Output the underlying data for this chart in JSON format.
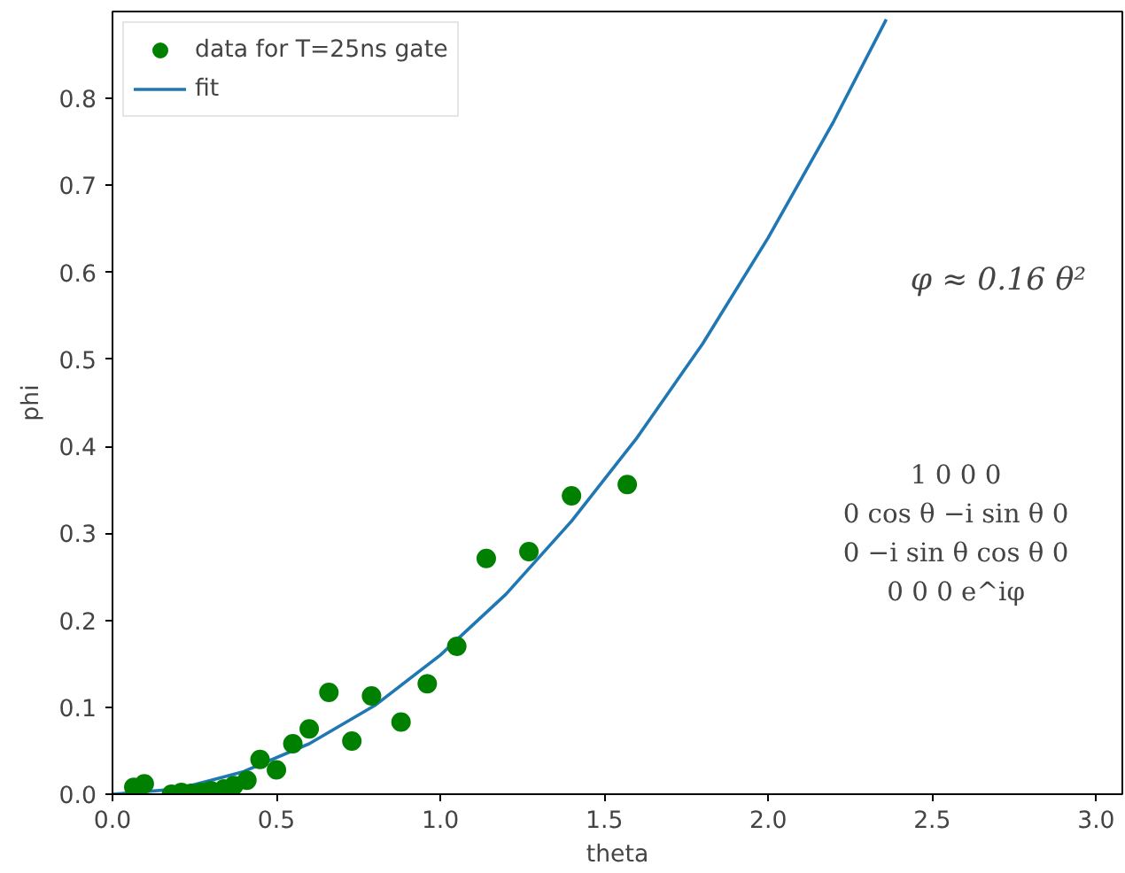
{
  "chart_data": {
    "type": "scatter",
    "xlabel": "theta",
    "ylabel": "phi",
    "xlim": [
      0,
      3.08
    ],
    "ylim": [
      0,
      0.9
    ],
    "xticks": [
      {
        "value": 0,
        "label": "0.0"
      },
      {
        "value": 0.5,
        "label": "0.5"
      },
      {
        "value": 1,
        "label": "1.0"
      },
      {
        "value": 1.5,
        "label": "1.5"
      },
      {
        "value": 2,
        "label": "2.0"
      },
      {
        "value": 2.5,
        "label": "2.5"
      },
      {
        "value": 3,
        "label": "3.0"
      }
    ],
    "yticks": [
      {
        "value": 0,
        "label": "0.0"
      },
      {
        "value": 0.1,
        "label": "0.1"
      },
      {
        "value": 0.2,
        "label": "0.2"
      },
      {
        "value": 0.3,
        "label": "0.3"
      },
      {
        "value": 0.4,
        "label": "0.4"
      },
      {
        "value": 0.5,
        "label": "0.5"
      },
      {
        "value": 0.6,
        "label": "0.6"
      },
      {
        "value": 0.7,
        "label": "0.7"
      },
      {
        "value": 0.8,
        "label": "0.8"
      }
    ],
    "grid": false,
    "legend": "top left",
    "series": [
      {
        "name": "data for T=25ns gate",
        "marker": "circle",
        "color": "#008000",
        "x": [
          0.065,
          0.097,
          0.18,
          0.21,
          0.24,
          0.27,
          0.3,
          0.34,
          0.37,
          0.41,
          0.45,
          0.5,
          0.55,
          0.6,
          0.66,
          0.73,
          0.79,
          0.88,
          0.96,
          1.05,
          1.14,
          1.27,
          1.4,
          1.57
        ],
        "values": [
          0.008,
          0.012,
          0.0,
          0.002,
          0.001,
          0.002,
          0.004,
          0.006,
          0.01,
          0.016,
          0.04,
          0.028,
          0.058,
          0.075,
          0.117,
          0.061,
          0.113,
          0.083,
          0.127,
          0.17,
          0.271,
          0.279,
          0.343,
          0.356
        ]
      },
      {
        "name": "fit",
        "type": "line",
        "marker": "none",
        "line_style": "solid",
        "color": "#1f77b4",
        "x": [
          0,
          0.2,
          0.4,
          0.6,
          0.8,
          1.0,
          1.2,
          1.4,
          1.6,
          1.8,
          2.0,
          2.2,
          2.36
        ],
        "values": [
          0,
          0.006,
          0.026,
          0.058,
          0.102,
          0.16,
          0.23,
          0.314,
          0.41,
          0.518,
          0.64,
          0.774,
          0.891
        ]
      }
    ],
    "annotations": [
      "φ ≈ 0.16 θ²",
      "1   0   0   0",
      "0   cos θ   −i sin θ   0",
      "0   −i sin θ   cos θ   0",
      "0   0   0   e^iφ"
    ]
  }
}
